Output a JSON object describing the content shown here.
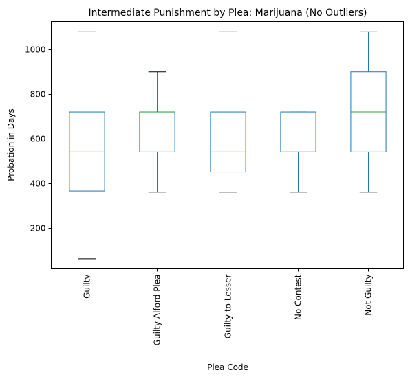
{
  "chart_data": {
    "type": "boxplot",
    "title": "Intermediate Punishment by Plea: Marijuana (No Outliers)",
    "xlabel": "Plea Code",
    "ylabel": "Probation in Days",
    "categories": [
      "Guilty",
      "Guilty Alford Plea",
      "Guilty to Lesser",
      "No Contest",
      "Not Guilty"
    ],
    "boxes": [
      {
        "category": "Guilty",
        "whisker_low": 60,
        "q1": 365,
        "median": 540,
        "q3": 720,
        "whisker_high": 1080
      },
      {
        "category": "Guilty Alford Plea",
        "whisker_low": 360,
        "q1": 540,
        "median": 720,
        "q3": 720,
        "whisker_high": 900
      },
      {
        "category": "Guilty to Lesser",
        "whisker_low": 360,
        "q1": 450,
        "median": 540,
        "q3": 720,
        "whisker_high": 1080
      },
      {
        "category": "No Contest",
        "whisker_low": 360,
        "q1": 540,
        "median": 540,
        "q3": 720,
        "whisker_high": 720
      },
      {
        "category": "Not Guilty",
        "whisker_low": 360,
        "q1": 540,
        "median": 720,
        "q3": 900,
        "whisker_high": 1080
      }
    ],
    "yticks": [
      200,
      400,
      600,
      800,
      1000
    ],
    "ylim": [
      15,
      1126
    ],
    "grid": false,
    "colors": {
      "box": "#1f77b4",
      "median": "#2ca02c",
      "cap": "#000000"
    }
  }
}
